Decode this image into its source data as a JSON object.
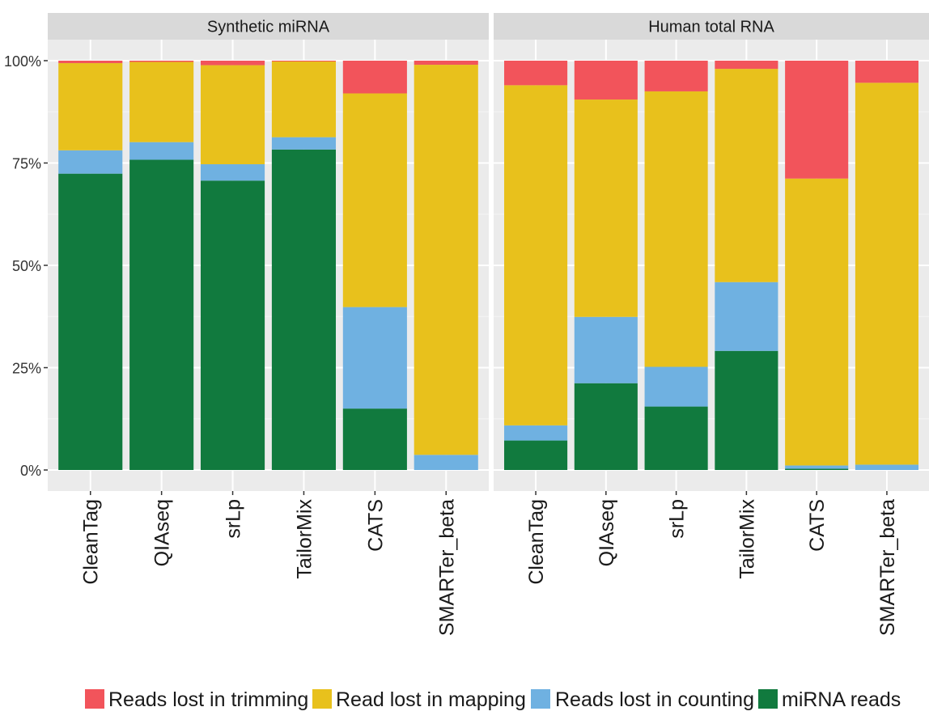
{
  "chart_data": {
    "type": "bar",
    "stacked": true,
    "percent": true,
    "categories": [
      "CleanTag",
      "QIAseq",
      "srLp",
      "TailorMix",
      "CATS",
      "SMARTer_beta"
    ],
    "y_ticks": [
      "0%",
      "25%",
      "50%",
      "75%",
      "100%"
    ],
    "ylim": [
      0,
      1.05
    ],
    "grid": true,
    "legend_position": "bottom",
    "series": [
      {
        "name": "Reads lost in trimming",
        "color": "#F2545B"
      },
      {
        "name": "Read lost in mapping",
        "color": "#E8C11C"
      },
      {
        "name": "Reads lost in counting",
        "color": "#6FB1E1"
      },
      {
        "name": "miRNA reads",
        "color": "#117A3E"
      }
    ],
    "stack_order_bottom_to_top": [
      "miRNA reads",
      "Reads lost in counting",
      "Read lost in mapping",
      "Reads lost in trimming"
    ],
    "facets": [
      {
        "title": "Synthetic miRNA",
        "values": {
          "miRNA reads": [
            0.724,
            0.758,
            0.707,
            0.783,
            0.15,
            0.0
          ],
          "Reads lost in counting": [
            0.057,
            0.043,
            0.04,
            0.03,
            0.248,
            0.037
          ],
          "Read lost in mapping": [
            0.213,
            0.196,
            0.242,
            0.185,
            0.522,
            0.953
          ],
          "Reads lost in trimming": [
            0.006,
            0.003,
            0.011,
            0.002,
            0.08,
            0.01
          ]
        }
      },
      {
        "title": "Human total RNA",
        "values": {
          "miRNA reads": [
            0.072,
            0.212,
            0.155,
            0.291,
            0.003,
            0.0
          ],
          "Reads lost in counting": [
            0.037,
            0.162,
            0.097,
            0.168,
            0.008,
            0.013
          ],
          "Read lost in mapping": [
            0.831,
            0.531,
            0.673,
            0.521,
            0.701,
            0.933
          ],
          "Reads lost in trimming": [
            0.06,
            0.095,
            0.075,
            0.02,
            0.288,
            0.054
          ]
        }
      }
    ]
  }
}
